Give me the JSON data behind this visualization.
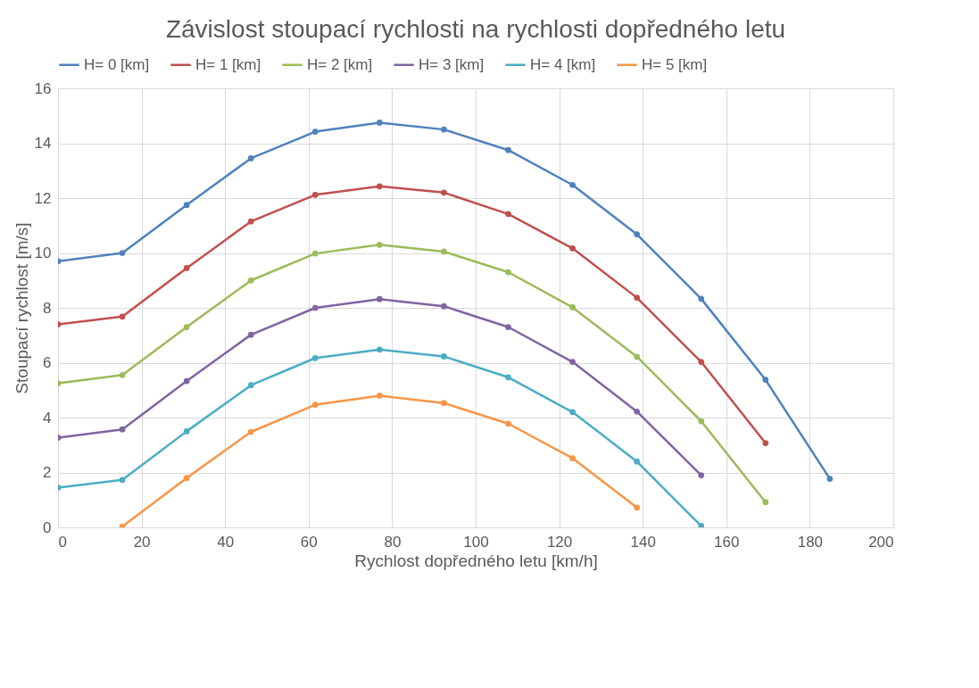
{
  "chart_data": {
    "type": "line",
    "title": "Závislost stoupací rychlosti na rychlosti dopředného letu",
    "xlabel": "Rychlost dopředného letu [km/h]",
    "ylabel": "Stoupací rychlost [m/s]",
    "xlim": [
      0,
      200
    ],
    "xticks": [
      0,
      20,
      40,
      60,
      80,
      100,
      120,
      140,
      160,
      180,
      200
    ],
    "ylim": [
      0,
      16
    ],
    "yticks": [
      0,
      2,
      4,
      6,
      8,
      10,
      12,
      14,
      16
    ],
    "grid": true,
    "legend": "top",
    "marker": "circle",
    "line_style": "solid",
    "series": [
      {
        "name": "H= 0 [km]",
        "color": "#4f81bd",
        "x": [
          0,
          15.4,
          30.8,
          46.2,
          61.6,
          77,
          92.4,
          107.8,
          123.2,
          138.6,
          154,
          169.4,
          184.8
        ],
        "values": [
          9.7,
          10.0,
          11.75,
          13.45,
          14.42,
          14.75,
          14.5,
          13.75,
          12.48,
          10.68,
          8.33,
          5.38,
          1.77
        ]
      },
      {
        "name": "H= 1 [km]",
        "color": "#c0504d",
        "x": [
          0,
          15.4,
          30.8,
          46.2,
          61.6,
          77,
          92.4,
          107.8,
          123.2,
          138.6,
          154,
          169.4
        ],
        "values": [
          7.4,
          7.68,
          9.45,
          11.15,
          12.12,
          12.43,
          12.2,
          11.42,
          10.17,
          8.37,
          6.03,
          3.07
        ]
      },
      {
        "name": "H= 2 [km]",
        "color": "#9bbb59",
        "x": [
          0,
          15.4,
          30.8,
          46.2,
          61.6,
          77,
          92.4,
          107.8,
          123.2,
          138.6,
          154,
          169.4
        ],
        "values": [
          5.25,
          5.55,
          7.3,
          9.0,
          9.98,
          10.3,
          10.05,
          9.3,
          8.02,
          6.22,
          3.87,
          0.92
        ]
      },
      {
        "name": "H= 3 [km]",
        "color": "#8064a2",
        "x": [
          0,
          15.4,
          30.8,
          46.2,
          61.6,
          77,
          92.4,
          107.8,
          123.2,
          138.6,
          154
        ],
        "values": [
          3.27,
          3.57,
          5.33,
          7.02,
          8.0,
          8.32,
          8.06,
          7.3,
          6.03,
          4.22,
          1.9
        ]
      },
      {
        "name": "H= 4 [km]",
        "color": "#4bacc6",
        "x": [
          0,
          15.4,
          30.8,
          46.2,
          61.6,
          77,
          92.4,
          107.8,
          123.2,
          138.6,
          154
        ],
        "values": [
          1.45,
          1.73,
          3.5,
          5.18,
          6.17,
          6.48,
          6.23,
          5.47,
          4.2,
          2.4,
          0.05
        ]
      },
      {
        "name": "H= 5 [km]",
        "color": "#f79646",
        "x": [
          15.4,
          30.8,
          46.2,
          61.6,
          77,
          92.4,
          107.8,
          123.2,
          138.6
        ],
        "values": [
          0.03,
          1.8,
          3.48,
          4.47,
          4.8,
          4.53,
          3.78,
          2.52,
          0.72
        ]
      }
    ]
  }
}
